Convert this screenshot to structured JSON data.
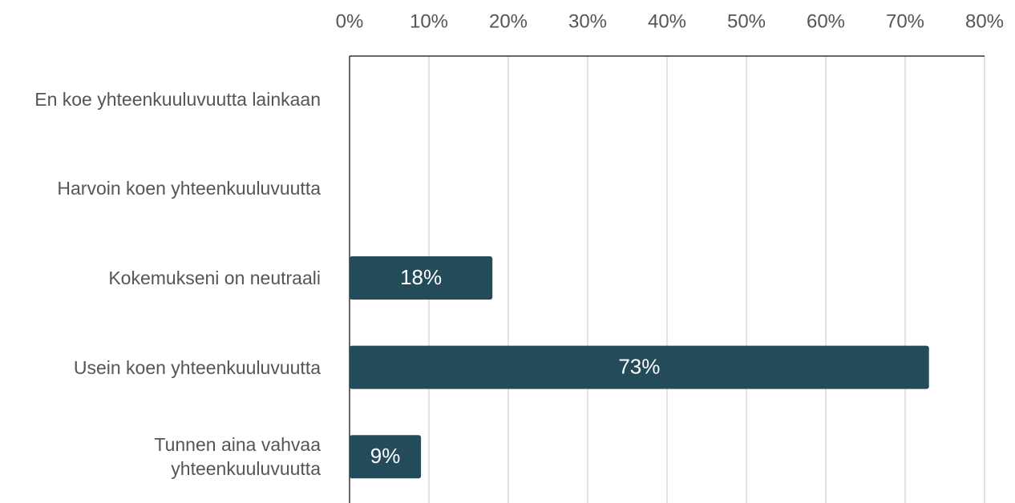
{
  "chart_data": {
    "type": "bar",
    "orientation": "horizontal",
    "categories": [
      "En koe yhteenkuuluvuutta lainkaan",
      "Harvoin koen yhteenkuuluvuutta",
      "Kokemukseni on neutraali",
      "Usein koen yhteenkuuluvuutta",
      "Tunnen aina vahvaa yhteenkuuluvuutta"
    ],
    "values": [
      0,
      0,
      18,
      73,
      9
    ],
    "value_labels": [
      null,
      null,
      "18%",
      "73%",
      "9%"
    ],
    "color": "#234b5a",
    "xlim": [
      0,
      80
    ],
    "xticks": [
      {
        "value": 0,
        "label": "0%"
      },
      {
        "value": 10,
        "label": "10%"
      },
      {
        "value": 20,
        "label": "20%"
      },
      {
        "value": 30,
        "label": "30%"
      },
      {
        "value": 40,
        "label": "40%"
      },
      {
        "value": 50,
        "label": "50%"
      },
      {
        "value": 60,
        "label": "60%"
      },
      {
        "value": 70,
        "label": "70%"
      },
      {
        "value": 80,
        "label": "80%"
      }
    ],
    "grid": true
  }
}
